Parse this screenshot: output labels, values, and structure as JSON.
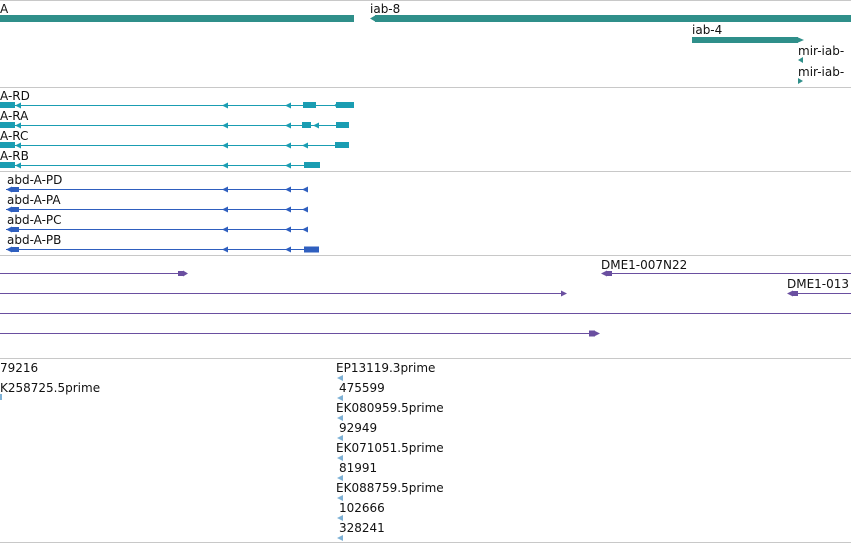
{
  "colors": {
    "gene": "#2f8f8a",
    "transcript_a": "#1a9db2",
    "transcript_b": "#2f5fbf",
    "clone": "#6a4fa0",
    "est": "#7fb2d6",
    "separator": "#c8c8c8"
  },
  "gene_track": {
    "labels": [
      "A",
      "iab-8",
      "iab-4",
      "mir-iab-",
      "mir-iab-"
    ]
  },
  "transcripts_a": {
    "labels": [
      "A-RD",
      "A-RA",
      "A-RC",
      "A-RB"
    ]
  },
  "transcripts_b": {
    "labels": [
      "abd-A-PD",
      "abd-A-PA",
      "abd-A-PC",
      "abd-A-PB"
    ]
  },
  "clones": {
    "labels": [
      "DME1-007N22",
      "DME1-013"
    ]
  },
  "ests": {
    "labels": [
      "79216",
      "K258725.5prime",
      "EP13119.3prime",
      "475599",
      "EK080959.5prime",
      "92949",
      "EK071051.5prime",
      "81991",
      "EK088759.5prime",
      "102666",
      "328241"
    ]
  }
}
